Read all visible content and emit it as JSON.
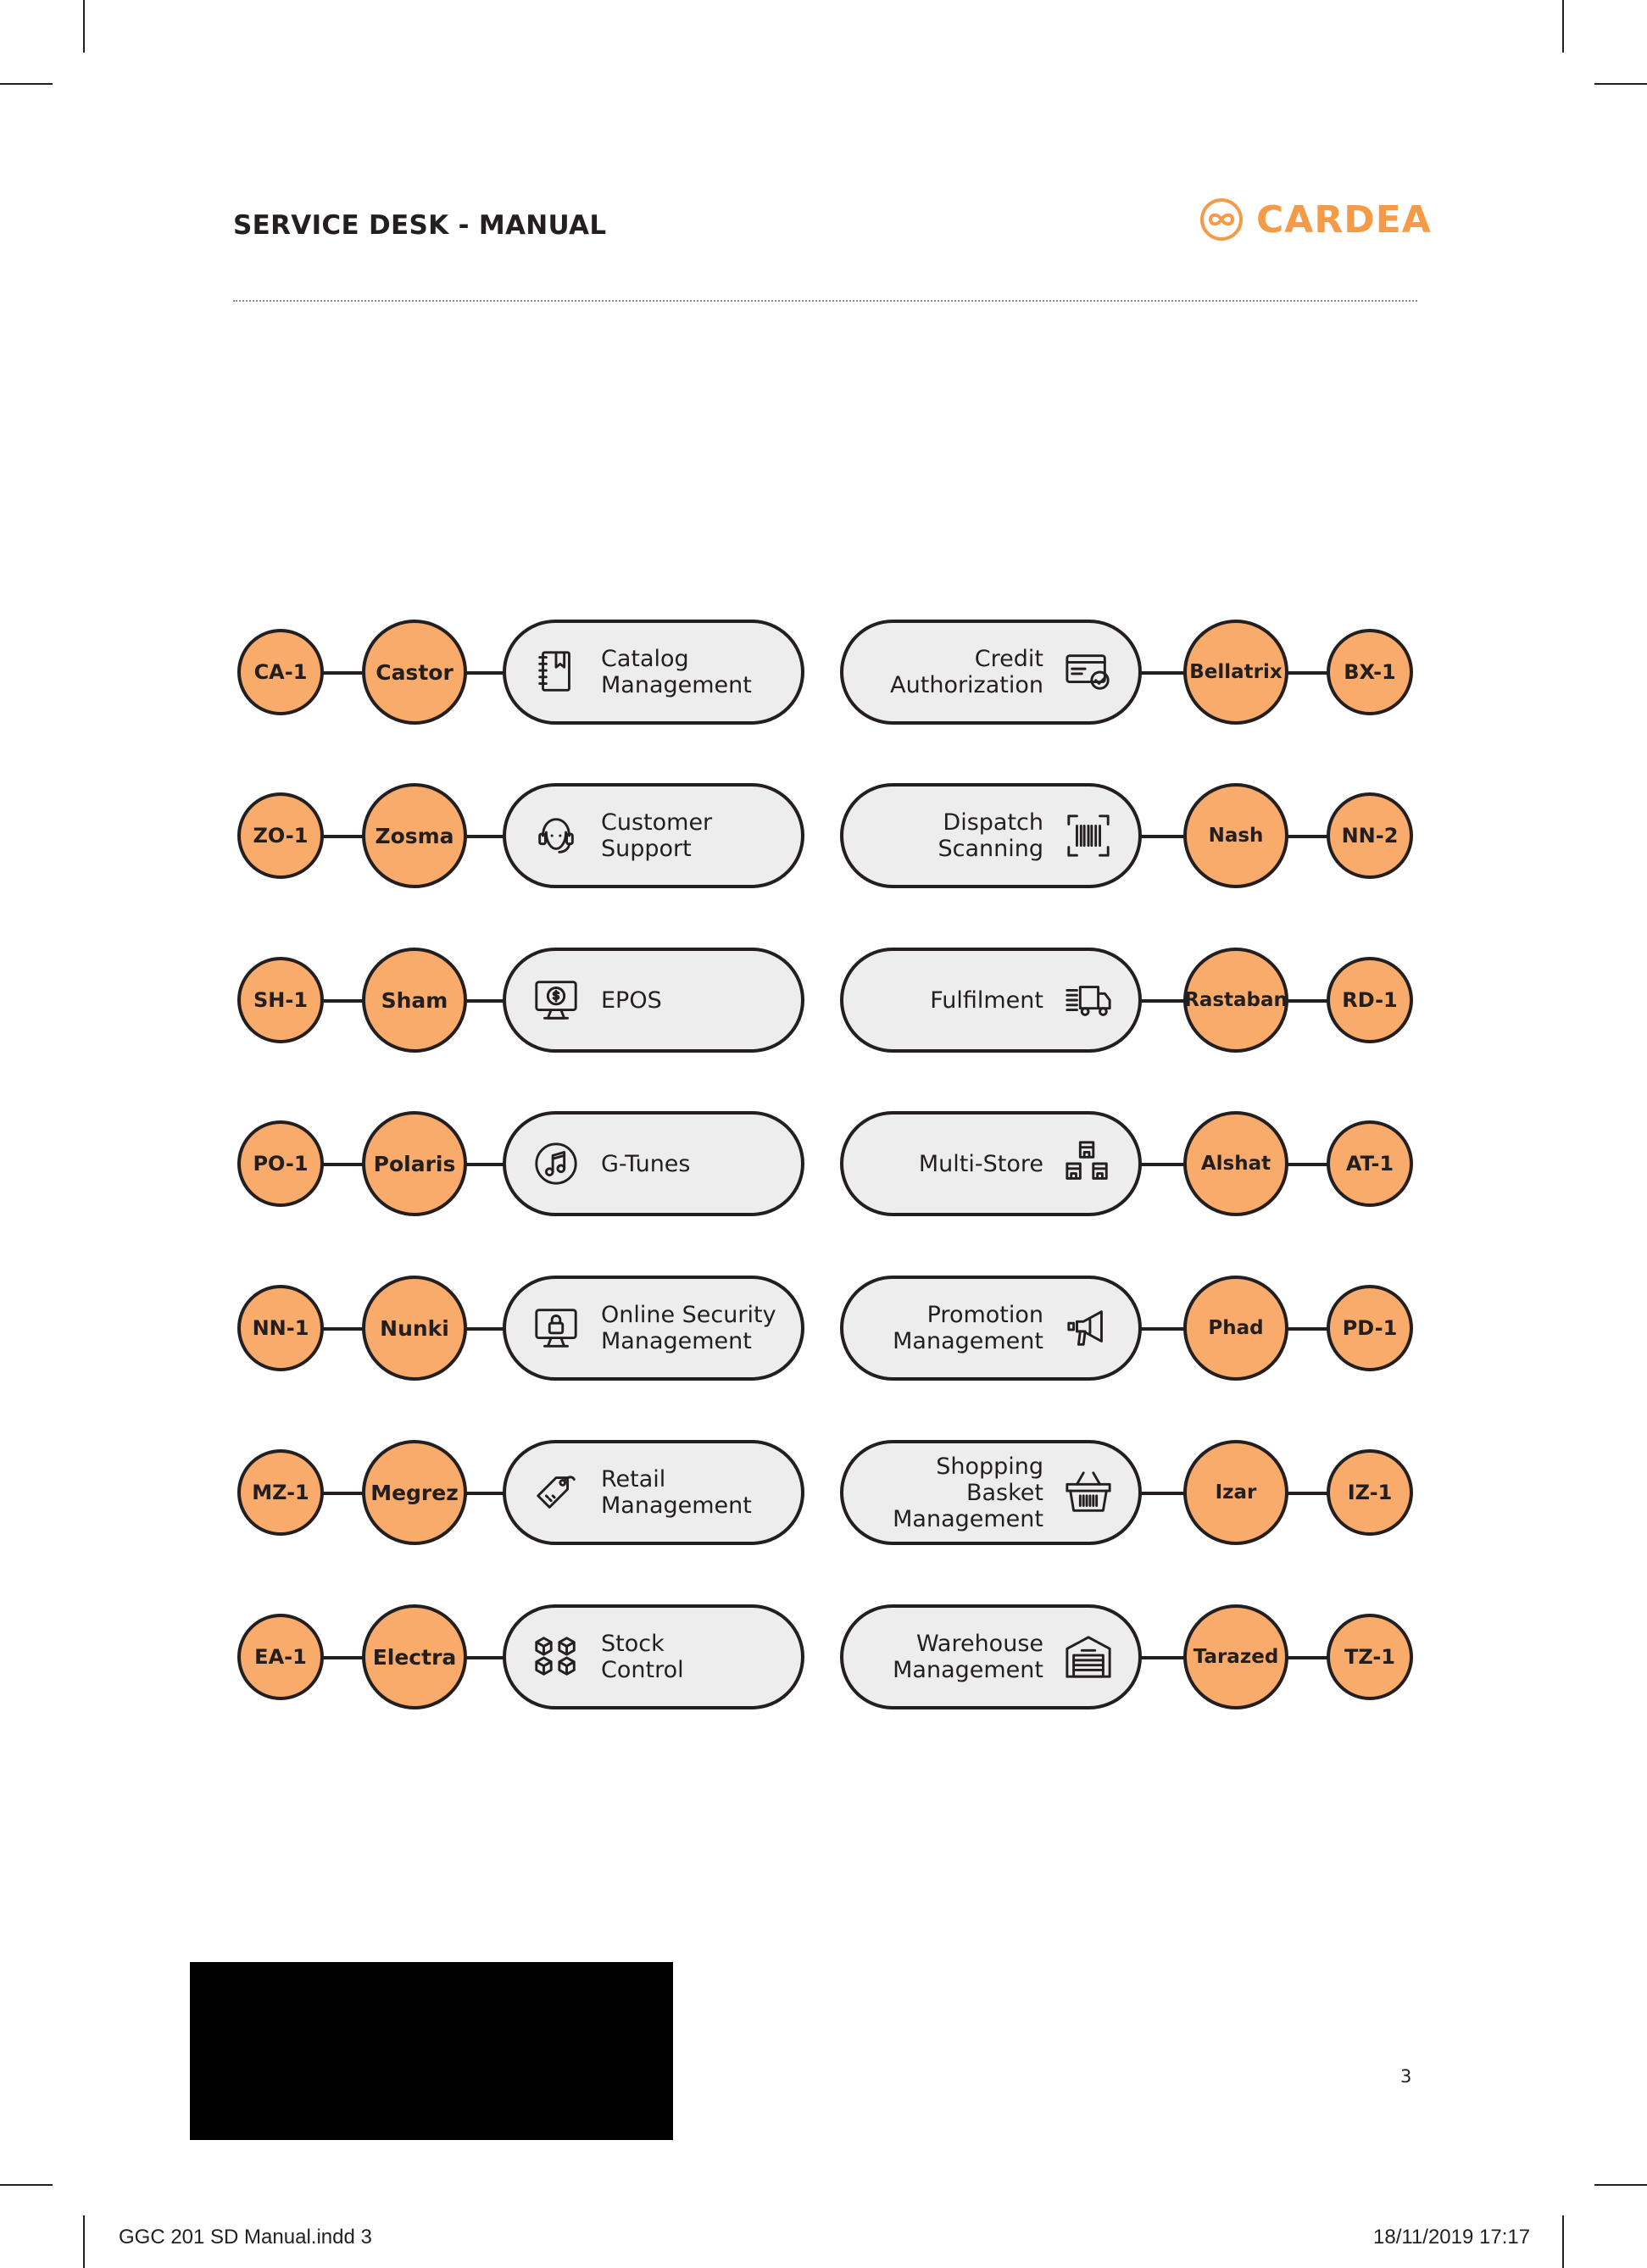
{
  "header": {
    "title": "SERVICE DESK - MANUAL",
    "brand": "CARDEA",
    "brand_color": "#f59a46"
  },
  "rows": [
    {
      "left": {
        "code": "CA-1",
        "name": "Castor",
        "service": "Catalog\nManagement",
        "icon": "catalog-book-icon"
      },
      "right": {
        "service": "Credit\nAuthorization",
        "icon": "credit-card-check-icon",
        "name": "Bellatrix",
        "code": "BX-1"
      }
    },
    {
      "left": {
        "code": "ZO-1",
        "name": "Zosma",
        "service": "Customer\nSupport",
        "icon": "headset-agent-icon"
      },
      "right": {
        "service": "Dispatch\nScanning",
        "icon": "barcode-scan-icon",
        "name": "Nash",
        "code": "NN-2"
      }
    },
    {
      "left": {
        "code": "SH-1",
        "name": "Sham",
        "service": "EPOS",
        "icon": "pos-monitor-icon"
      },
      "right": {
        "service": "Fulfilment",
        "icon": "delivery-truck-icon",
        "name": "Rastaban",
        "code": "RD-1"
      }
    },
    {
      "left": {
        "code": "PO-1",
        "name": "Polaris",
        "service": "G-Tunes",
        "icon": "music-note-icon"
      },
      "right": {
        "service": "Multi-Store",
        "icon": "multi-store-icon",
        "name": "Alshat",
        "code": "AT-1"
      }
    },
    {
      "left": {
        "code": "NN-1",
        "name": "Nunki",
        "service": "Online Security\nManagement",
        "icon": "monitor-lock-icon"
      },
      "right": {
        "service": "Promotion\nManagement",
        "icon": "megaphone-icon",
        "name": "Phad",
        "code": "PD-1"
      }
    },
    {
      "left": {
        "code": "MZ-1",
        "name": "Megrez",
        "service": "Retail\nManagement",
        "icon": "price-tag-icon"
      },
      "right": {
        "service": "Shopping\nBasket\nManagement",
        "icon": "shopping-basket-icon",
        "name": "Izar",
        "code": "IZ-1"
      }
    },
    {
      "left": {
        "code": "EA-1",
        "name": "Electra",
        "service": "Stock\nControl",
        "icon": "stock-boxes-icon"
      },
      "right": {
        "service": "Warehouse\nManagement",
        "icon": "warehouse-icon",
        "name": "Tarazed",
        "code": "TZ-1"
      }
    }
  ],
  "page_number": "3",
  "footer": {
    "file": "GGC 201 SD Manual.indd   3",
    "timestamp": "18/11/2019   17:17"
  }
}
